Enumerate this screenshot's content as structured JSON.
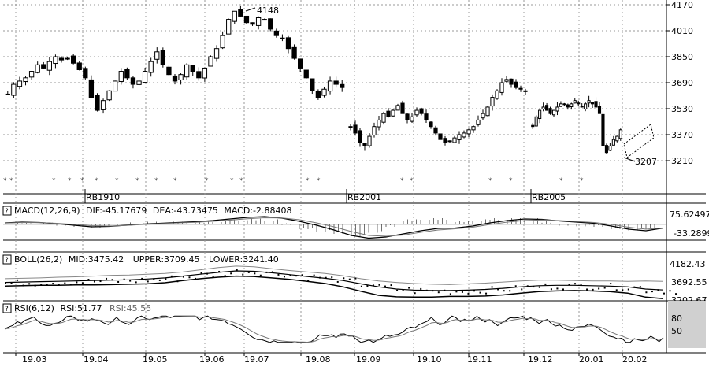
{
  "chart_data": {
    "type": "candlestick",
    "main": {
      "yticks": [
        "4170",
        "4010",
        "3850",
        "3690",
        "3530",
        "3370",
        "3210"
      ],
      "ylim": [
        3050,
        4190
      ],
      "high_annotation": "4148",
      "low_annotation": "3207",
      "contracts": [
        "RB1910",
        "RB2001",
        "RB2005"
      ],
      "star_marks": [
        "**",
        "**",
        "*",
        "*",
        "*",
        "**",
        "*",
        "*",
        "*",
        "*",
        "*",
        "*",
        "*",
        "*",
        "*",
        "*",
        "*",
        "*",
        "*",
        "*"
      ],
      "segments": [
        {
          "contract": "RB1910",
          "closes": [
            3620,
            3680,
            3700,
            3720,
            3760,
            3800,
            3780,
            3820,
            3850,
            3830,
            3840,
            3810,
            3770,
            3720,
            3600,
            3520,
            3580,
            3640,
            3700,
            3760,
            3720,
            3680,
            3700,
            3760,
            3820,
            3880,
            3800,
            3740,
            3700,
            3740,
            3800,
            3760,
            3720,
            3780,
            3850,
            3900,
            3980,
            4080,
            4130,
            4100,
            4060,
            4050,
            4090,
            4080,
            4020,
            3980,
            3960,
            3900,
            3840,
            3780,
            3720,
            3640,
            3600,
            3650,
            3700,
            3680,
            3660
          ]
        },
        {
          "contract": "RB2001",
          "closes": [
            3420,
            3380,
            3320,
            3300,
            3360,
            3420,
            3460,
            3500,
            3480,
            3520,
            3550,
            3500,
            3460,
            3480,
            3520,
            3500,
            3460,
            3420,
            3380,
            3340,
            3320,
            3330,
            3350,
            3370,
            3380,
            3400,
            3420,
            3460,
            3500,
            3540,
            3600,
            3640,
            3690,
            3710,
            3680,
            3660,
            3650,
            3640
          ]
        },
        {
          "contract": "RB2005",
          "closes": [
            3420,
            3480,
            3520,
            3540,
            3520,
            3500,
            3520,
            3540,
            3560,
            3560,
            3540,
            3560,
            3580,
            3560,
            3540,
            3560,
            3580,
            3560,
            3540,
            3500,
            3300,
            3260,
            3300,
            3340,
            3360,
            3400
          ]
        }
      ]
    },
    "macd": {
      "header": {
        "label": "MACD(12,26,9)",
        "dif": "DIF:-45.17679",
        "dea": "DEA:-43.73475",
        "macd": "MACD:-2.88408"
      },
      "yticks": [
        "75.62497",
        "-33.2899"
      ],
      "dif": [
        20,
        30,
        25,
        10,
        -10,
        -30,
        -25,
        -10,
        5,
        15,
        25,
        35,
        50,
        70,
        90,
        100,
        80,
        40,
        -10,
        -70,
        -140,
        -175,
        -160,
        -120,
        -80,
        -50,
        -45,
        -20,
        20,
        50,
        70,
        65,
        45,
        30,
        15,
        -20,
        -60,
        -80,
        -45
      ],
      "dea": [
        18,
        25,
        24,
        15,
        0,
        -15,
        -20,
        -12,
        0,
        10,
        20,
        28,
        40,
        55,
        72,
        85,
        82,
        60,
        20,
        -30,
        -90,
        -140,
        -150,
        -135,
        -100,
        -70,
        -55,
        -35,
        0,
        30,
        50,
        58,
        50,
        38,
        25,
        0,
        -35,
        -60,
        -44
      ]
    },
    "boll": {
      "header": {
        "label": "BOLL(26,2)",
        "mid": "MID:3475.42",
        "upper": "UPPER:3709.45",
        "lower": "LOWER:3241.40"
      },
      "yticks": [
        "4182.43",
        "3692.55",
        "3202.67"
      ],
      "ylim": [
        3150,
        4250
      ],
      "upper": [
        3780,
        3790,
        3800,
        3820,
        3830,
        3850,
        3870,
        3880,
        3900,
        3920,
        3960,
        4020,
        4080,
        4120,
        4100,
        4050,
        4000,
        3960,
        3920,
        3860,
        3780,
        3720,
        3680,
        3650,
        3630,
        3620,
        3640,
        3660,
        3690,
        3720,
        3740,
        3740,
        3730,
        3720,
        3720,
        3710,
        3720,
        3710
      ],
      "mid": [
        3680,
        3690,
        3700,
        3710,
        3720,
        3730,
        3740,
        3750,
        3770,
        3800,
        3850,
        3900,
        3950,
        3990,
        3980,
        3940,
        3890,
        3840,
        3790,
        3730,
        3640,
        3560,
        3500,
        3470,
        3460,
        3460,
        3470,
        3490,
        3520,
        3560,
        3590,
        3600,
        3600,
        3590,
        3580,
        3560,
        3500,
        3475
      ],
      "lower": [
        3580,
        3590,
        3600,
        3600,
        3610,
        3610,
        3620,
        3630,
        3640,
        3670,
        3730,
        3780,
        3820,
        3850,
        3840,
        3800,
        3760,
        3710,
        3650,
        3560,
        3440,
        3330,
        3290,
        3280,
        3280,
        3300,
        3300,
        3310,
        3340,
        3390,
        3430,
        3450,
        3460,
        3450,
        3430,
        3390,
        3280,
        3241
      ]
    },
    "rsi": {
      "header": {
        "label": "RSI(6,12)",
        "rsi1": "RSI:51.77",
        "rsi2": "RSI:45.55"
      },
      "yticks": [
        "80",
        "50"
      ],
      "ylim": [
        0,
        100
      ]
    },
    "x_ticks": [
      "19.03",
      "19.04",
      "19.05",
      "19.06",
      "19.07",
      "19.08",
      "19.09",
      "19.10",
      "19.11",
      "19.12",
      "20.01",
      "20.02"
    ]
  }
}
